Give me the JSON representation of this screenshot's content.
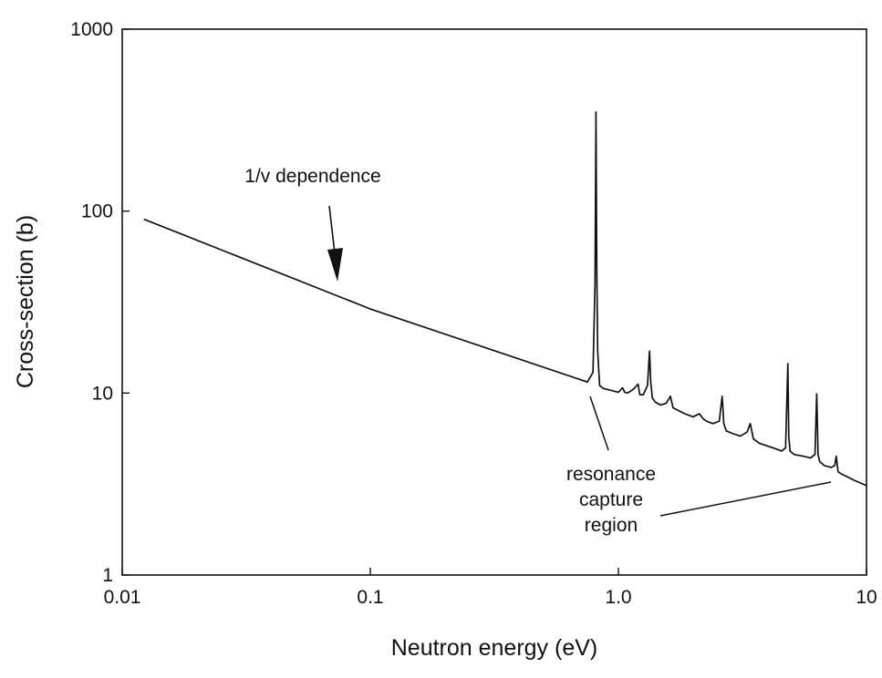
{
  "chart_data": {
    "type": "line",
    "title": "",
    "xlabel": "Neutron energy (eV)",
    "ylabel": "Cross-section (b)",
    "x_scale": "log",
    "y_scale": "log",
    "xlim": [
      0.01,
      10
    ],
    "ylim": [
      1,
      1000
    ],
    "grid": false,
    "legend": "none",
    "x_ticks": [
      {
        "value": 0.01,
        "label": "0.01"
      },
      {
        "value": 0.1,
        "label": "0.1"
      },
      {
        "value": 1.0,
        "label": "1.0"
      },
      {
        "value": 10,
        "label": "10"
      }
    ],
    "y_ticks": [
      {
        "value": 1,
        "label": "1"
      },
      {
        "value": 10,
        "label": "10"
      },
      {
        "value": 100,
        "label": "100"
      },
      {
        "value": 1000,
        "label": "1000"
      }
    ],
    "series": [
      {
        "color": "#111111",
        "x": [
          0.0123,
          0.1,
          0.75,
          0.79,
          0.805,
          0.812,
          0.818,
          0.825,
          0.84,
          0.87,
          0.92,
          1.0,
          1.04,
          1.06,
          1.09,
          1.15,
          1.2,
          1.22,
          1.26,
          1.31,
          1.335,
          1.35,
          1.37,
          1.41,
          1.48,
          1.56,
          1.62,
          1.66,
          1.72,
          1.85,
          2.0,
          2.12,
          2.2,
          2.27,
          2.4,
          2.55,
          2.62,
          2.66,
          2.72,
          2.88,
          3.1,
          3.3,
          3.4,
          3.5,
          3.7,
          4.2,
          4.55,
          4.72,
          4.82,
          4.86,
          4.92,
          5.1,
          5.55,
          5.95,
          6.2,
          6.3,
          6.38,
          6.48,
          6.75,
          7.2,
          7.45,
          7.55,
          7.68,
          7.9,
          8.25,
          8.6,
          9.0,
          10.0
        ],
        "y": [
          90,
          29,
          11.5,
          13,
          40,
          350,
          50,
          17,
          11,
          10.6,
          10.4,
          10.1,
          10.7,
          10.1,
          10.0,
          10.5,
          11.2,
          9.8,
          9.8,
          11,
          17,
          11.5,
          9.4,
          8.9,
          8.6,
          8.8,
          9.6,
          8.3,
          8.1,
          7.7,
          7.4,
          7.7,
          7.2,
          7.0,
          6.8,
          7.0,
          9.6,
          6.8,
          6.2,
          6.0,
          5.8,
          6.1,
          6.8,
          5.6,
          5.3,
          5.0,
          4.8,
          5.0,
          14.5,
          5.8,
          4.8,
          4.6,
          4.5,
          4.4,
          4.6,
          9.9,
          4.6,
          4.2,
          4.0,
          3.9,
          4.0,
          4.5,
          3.7,
          3.6,
          3.5,
          3.4,
          3.3,
          3.1
        ]
      }
    ],
    "annotations": [
      {
        "text": "1/v dependence",
        "x": 0.068,
        "y": 190
      },
      {
        "lines": [
          "resonance",
          "capture",
          "region"
        ],
        "x": 1.3,
        "y": 2.0
      }
    ]
  }
}
